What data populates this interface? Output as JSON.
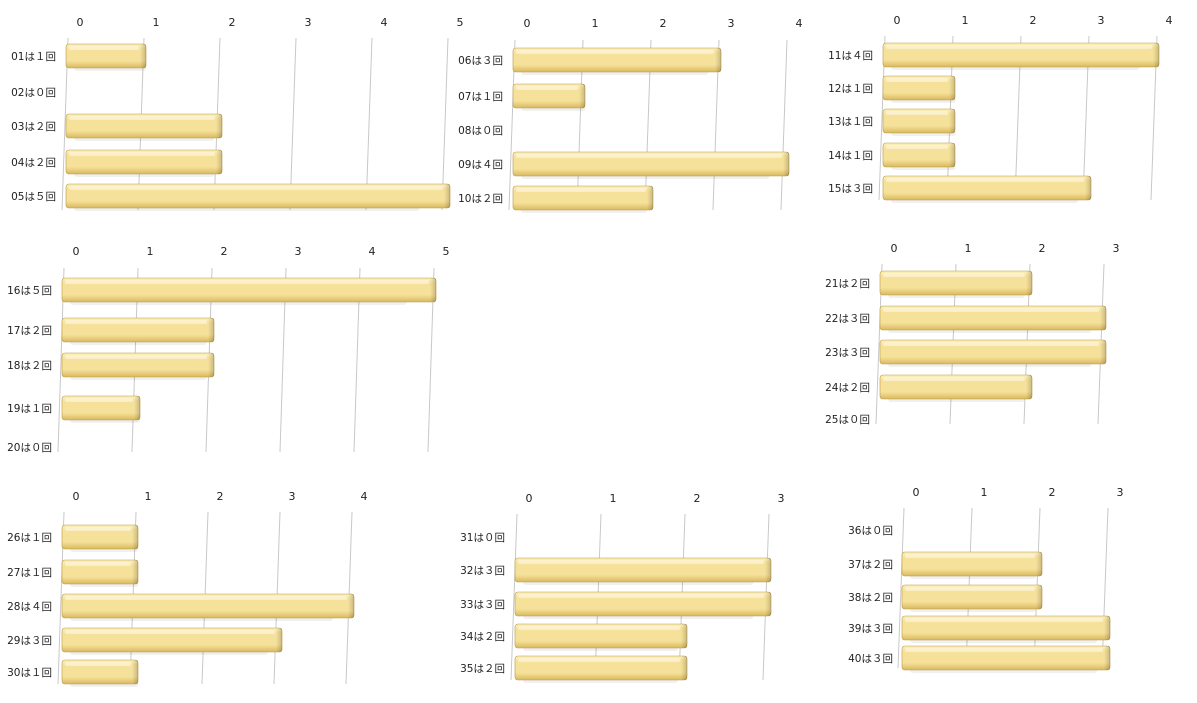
{
  "colors": {
    "bar_top": "#fdf0b8",
    "bar_mid": "#f6e19b",
    "bar_bottom": "#d9b95d",
    "bar_edge": "#b89a4a",
    "grid": "#c8c8c8",
    "text": "#222222"
  },
  "chart_data": [
    {
      "type": "bar",
      "orientation": "horizontal",
      "title": "",
      "xlabel": "",
      "ylabel": "",
      "xlim": [
        0,
        5
      ],
      "ticks": [
        "0",
        "1",
        "2",
        "3",
        "4",
        "5"
      ],
      "categories": [
        "01は１回",
        "02は０回",
        "03は２回",
        "04は２回",
        "05は５回"
      ],
      "values": [
        1,
        0,
        2,
        2,
        5
      ]
    },
    {
      "type": "bar",
      "orientation": "horizontal",
      "title": "",
      "xlabel": "",
      "ylabel": "",
      "xlim": [
        0,
        4
      ],
      "ticks": [
        "0",
        "1",
        "2",
        "3",
        "4"
      ],
      "categories": [
        "06は３回",
        "07は１回",
        "08は０回",
        "09は４回",
        "10は２回"
      ],
      "values": [
        3,
        1,
        0,
        4,
        2
      ]
    },
    {
      "type": "bar",
      "orientation": "horizontal",
      "title": "",
      "xlabel": "",
      "ylabel": "",
      "xlim": [
        0,
        4
      ],
      "ticks": [
        "0",
        "1",
        "2",
        "3",
        "4"
      ],
      "categories": [
        "11は４回",
        "12は１回",
        "13は１回",
        "14は１回",
        "15は３回"
      ],
      "values": [
        4,
        1,
        1,
        1,
        3
      ]
    },
    {
      "type": "bar",
      "orientation": "horizontal",
      "title": "",
      "xlabel": "",
      "ylabel": "",
      "xlim": [
        0,
        5
      ],
      "ticks": [
        "0",
        "1",
        "2",
        "3",
        "4",
        "5"
      ],
      "categories": [
        "16は５回",
        "17は２回",
        "18は２回",
        "19は１回",
        "20は０回"
      ],
      "values": [
        5,
        2,
        2,
        1,
        0
      ]
    },
    {
      "type": "bar",
      "orientation": "horizontal",
      "title": "",
      "xlabel": "",
      "ylabel": "",
      "xlim": [
        0,
        3
      ],
      "ticks": [
        "0",
        "1",
        "2",
        "3"
      ],
      "categories": [
        "21は２回",
        "22は３回",
        "23は３回",
        "24は２回",
        "25は０回"
      ],
      "values": [
        2,
        3,
        3,
        2,
        0
      ]
    },
    {
      "type": "bar",
      "orientation": "horizontal",
      "title": "",
      "xlabel": "",
      "ylabel": "",
      "xlim": [
        0,
        4
      ],
      "ticks": [
        "0",
        "1",
        "2",
        "3",
        "4"
      ],
      "categories": [
        "26は１回",
        "27は１回",
        "28は４回",
        "29は３回",
        "30は１回"
      ],
      "values": [
        1,
        1,
        4,
        3,
        1
      ]
    },
    {
      "type": "bar",
      "orientation": "horizontal",
      "title": "",
      "xlabel": "",
      "ylabel": "",
      "xlim": [
        0,
        3
      ],
      "ticks": [
        "0",
        "1",
        "2",
        "3"
      ],
      "categories": [
        "31は０回",
        "32は３回",
        "33は３回",
        "34は２回",
        "35は２回"
      ],
      "values": [
        0,
        3,
        3,
        2,
        2
      ]
    },
    {
      "type": "bar",
      "orientation": "horizontal",
      "title": "",
      "xlabel": "",
      "ylabel": "",
      "xlim": [
        0,
        3
      ],
      "ticks": [
        "0",
        "1",
        "2",
        "3"
      ],
      "categories": [
        "36は０回",
        "37は２回",
        "38は２回",
        "39は３回",
        "40は３回"
      ],
      "values": [
        0,
        2,
        2,
        3,
        3
      ]
    }
  ]
}
